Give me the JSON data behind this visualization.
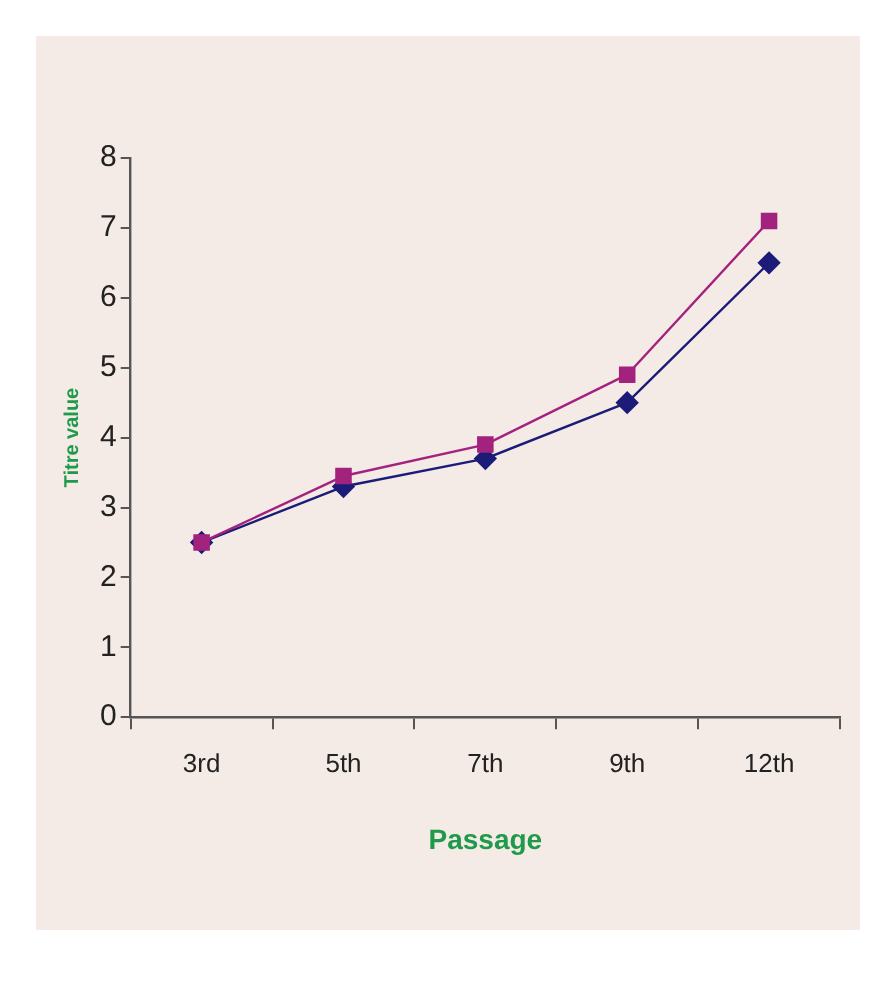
{
  "chart_data": {
    "type": "line",
    "xlabel": "Passage",
    "ylabel": "Titre value",
    "categories": [
      "3rd",
      "5th",
      "7th",
      "9th",
      "12th"
    ],
    "series": [
      {
        "color": "#1c1c78",
        "marker": "diamond",
        "values": [
          2.5,
          3.3,
          3.7,
          4.5,
          6.5
        ]
      },
      {
        "color": "#a3227e",
        "marker": "square",
        "values": [
          2.5,
          3.45,
          3.9,
          4.9,
          7.1
        ]
      }
    ],
    "ylim": [
      0,
      8
    ],
    "yticks": [
      0,
      1,
      2,
      3,
      4,
      5,
      6,
      7,
      8
    ],
    "grid": false,
    "legend": false,
    "line_style": "solid"
  }
}
